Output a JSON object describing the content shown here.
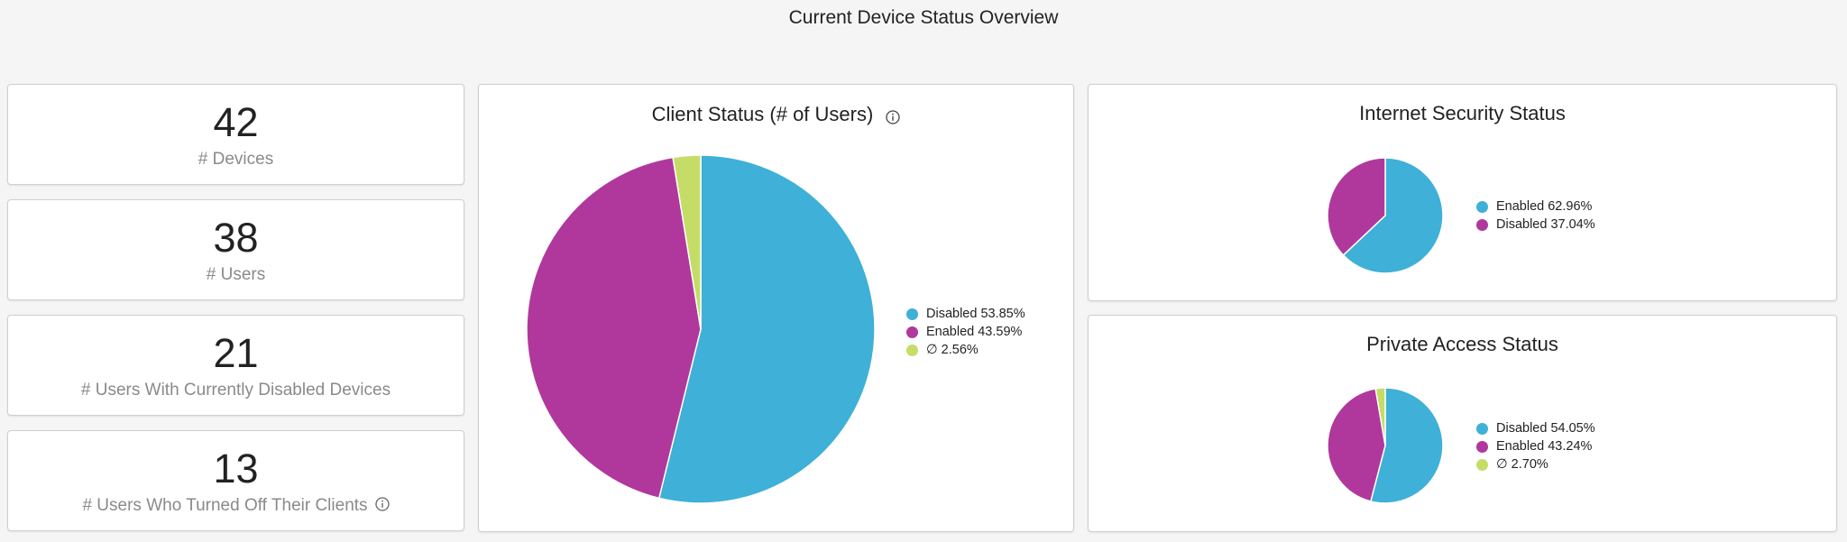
{
  "page": {
    "title": "Current Device Status Overview"
  },
  "stats": [
    {
      "value": "42",
      "label": "# Devices",
      "info": false
    },
    {
      "value": "38",
      "label": "# Users",
      "info": false
    },
    {
      "value": "21",
      "label": "# Users With Currently Disabled Devices",
      "info": false
    },
    {
      "value": "13",
      "label": "# Users Who Turned Off Their Clients",
      "info": true
    }
  ],
  "colors": {
    "blue": "#3fb0d7",
    "magenta": "#b0389c",
    "lime": "#c5dd66"
  },
  "chart_data": [
    {
      "type": "pie",
      "title": "Client Status (# of Users)",
      "slices": [
        {
          "label": "Disabled 53.85%",
          "value": 53.85,
          "color": "#3fb0d7"
        },
        {
          "label": "Enabled 43.59%",
          "value": 43.59,
          "color": "#b0389c"
        },
        {
          "label": "∅ 2.56%",
          "value": 2.56,
          "color": "#c5dd66"
        }
      ]
    },
    {
      "type": "pie",
      "title": "Internet Security Status",
      "slices": [
        {
          "label": "Enabled 62.96%",
          "value": 62.96,
          "color": "#3fb0d7"
        },
        {
          "label": "Disabled 37.04%",
          "value": 37.04,
          "color": "#b0389c"
        }
      ]
    },
    {
      "type": "pie",
      "title": "Private Access Status",
      "slices": [
        {
          "label": "Disabled 54.05%",
          "value": 54.05,
          "color": "#3fb0d7"
        },
        {
          "label": "Enabled 43.24%",
          "value": 43.24,
          "color": "#b0389c"
        },
        {
          "label": "∅ 2.70%",
          "value": 2.7,
          "color": "#c5dd66"
        }
      ]
    }
  ]
}
